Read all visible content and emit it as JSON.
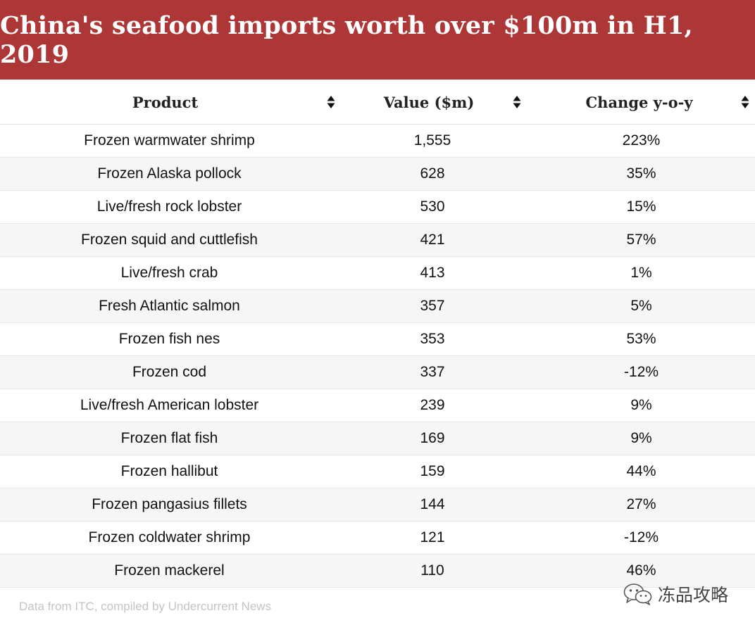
{
  "title": "China's seafood imports worth over $100m in H1, 2019",
  "columns": [
    {
      "label": "Product",
      "icon": "sort-icon"
    },
    {
      "label": "Value ($m)",
      "icon": "sort-icon"
    },
    {
      "label": "Change y-o-y",
      "icon": "sort-icon"
    }
  ],
  "rows": [
    {
      "product": "Frozen warmwater shrimp",
      "value": "1,555",
      "change": "223%"
    },
    {
      "product": "Frozen Alaska pollock",
      "value": "628",
      "change": "35%"
    },
    {
      "product": "Live/fresh rock lobster",
      "value": "530",
      "change": "15%"
    },
    {
      "product": "Frozen squid and cuttlefish",
      "value": "421",
      "change": "57%"
    },
    {
      "product": "Live/fresh crab",
      "value": "413",
      "change": "1%"
    },
    {
      "product": "Fresh Atlantic salmon",
      "value": "357",
      "change": "5%"
    },
    {
      "product": "Frozen fish nes",
      "value": "353",
      "change": "53%"
    },
    {
      "product": "Frozen cod",
      "value": "337",
      "change": "-12%"
    },
    {
      "product": "Live/fresh American lobster",
      "value": "239",
      "change": "9%"
    },
    {
      "product": "Frozen flat fish",
      "value": "169",
      "change": "9%"
    },
    {
      "product": "Frozen hallibut",
      "value": "159",
      "change": "44%"
    },
    {
      "product": "Frozen pangasius fillets",
      "value": "144",
      "change": "27%"
    },
    {
      "product": "Frozen coldwater shrimp",
      "value": "121",
      "change": "-12%"
    },
    {
      "product": "Frozen mackerel",
      "value": "110",
      "change": "46%"
    }
  ],
  "source": "Data from ITC, compiled by Undercurrent News",
  "watermark": {
    "text": "冻品攻略",
    "icon": "wechat-logo-icon"
  },
  "colors": {
    "header_bg": "#ad3637",
    "row_stripe": "#f6f6f6",
    "source_text": "#c4c4c4"
  }
}
